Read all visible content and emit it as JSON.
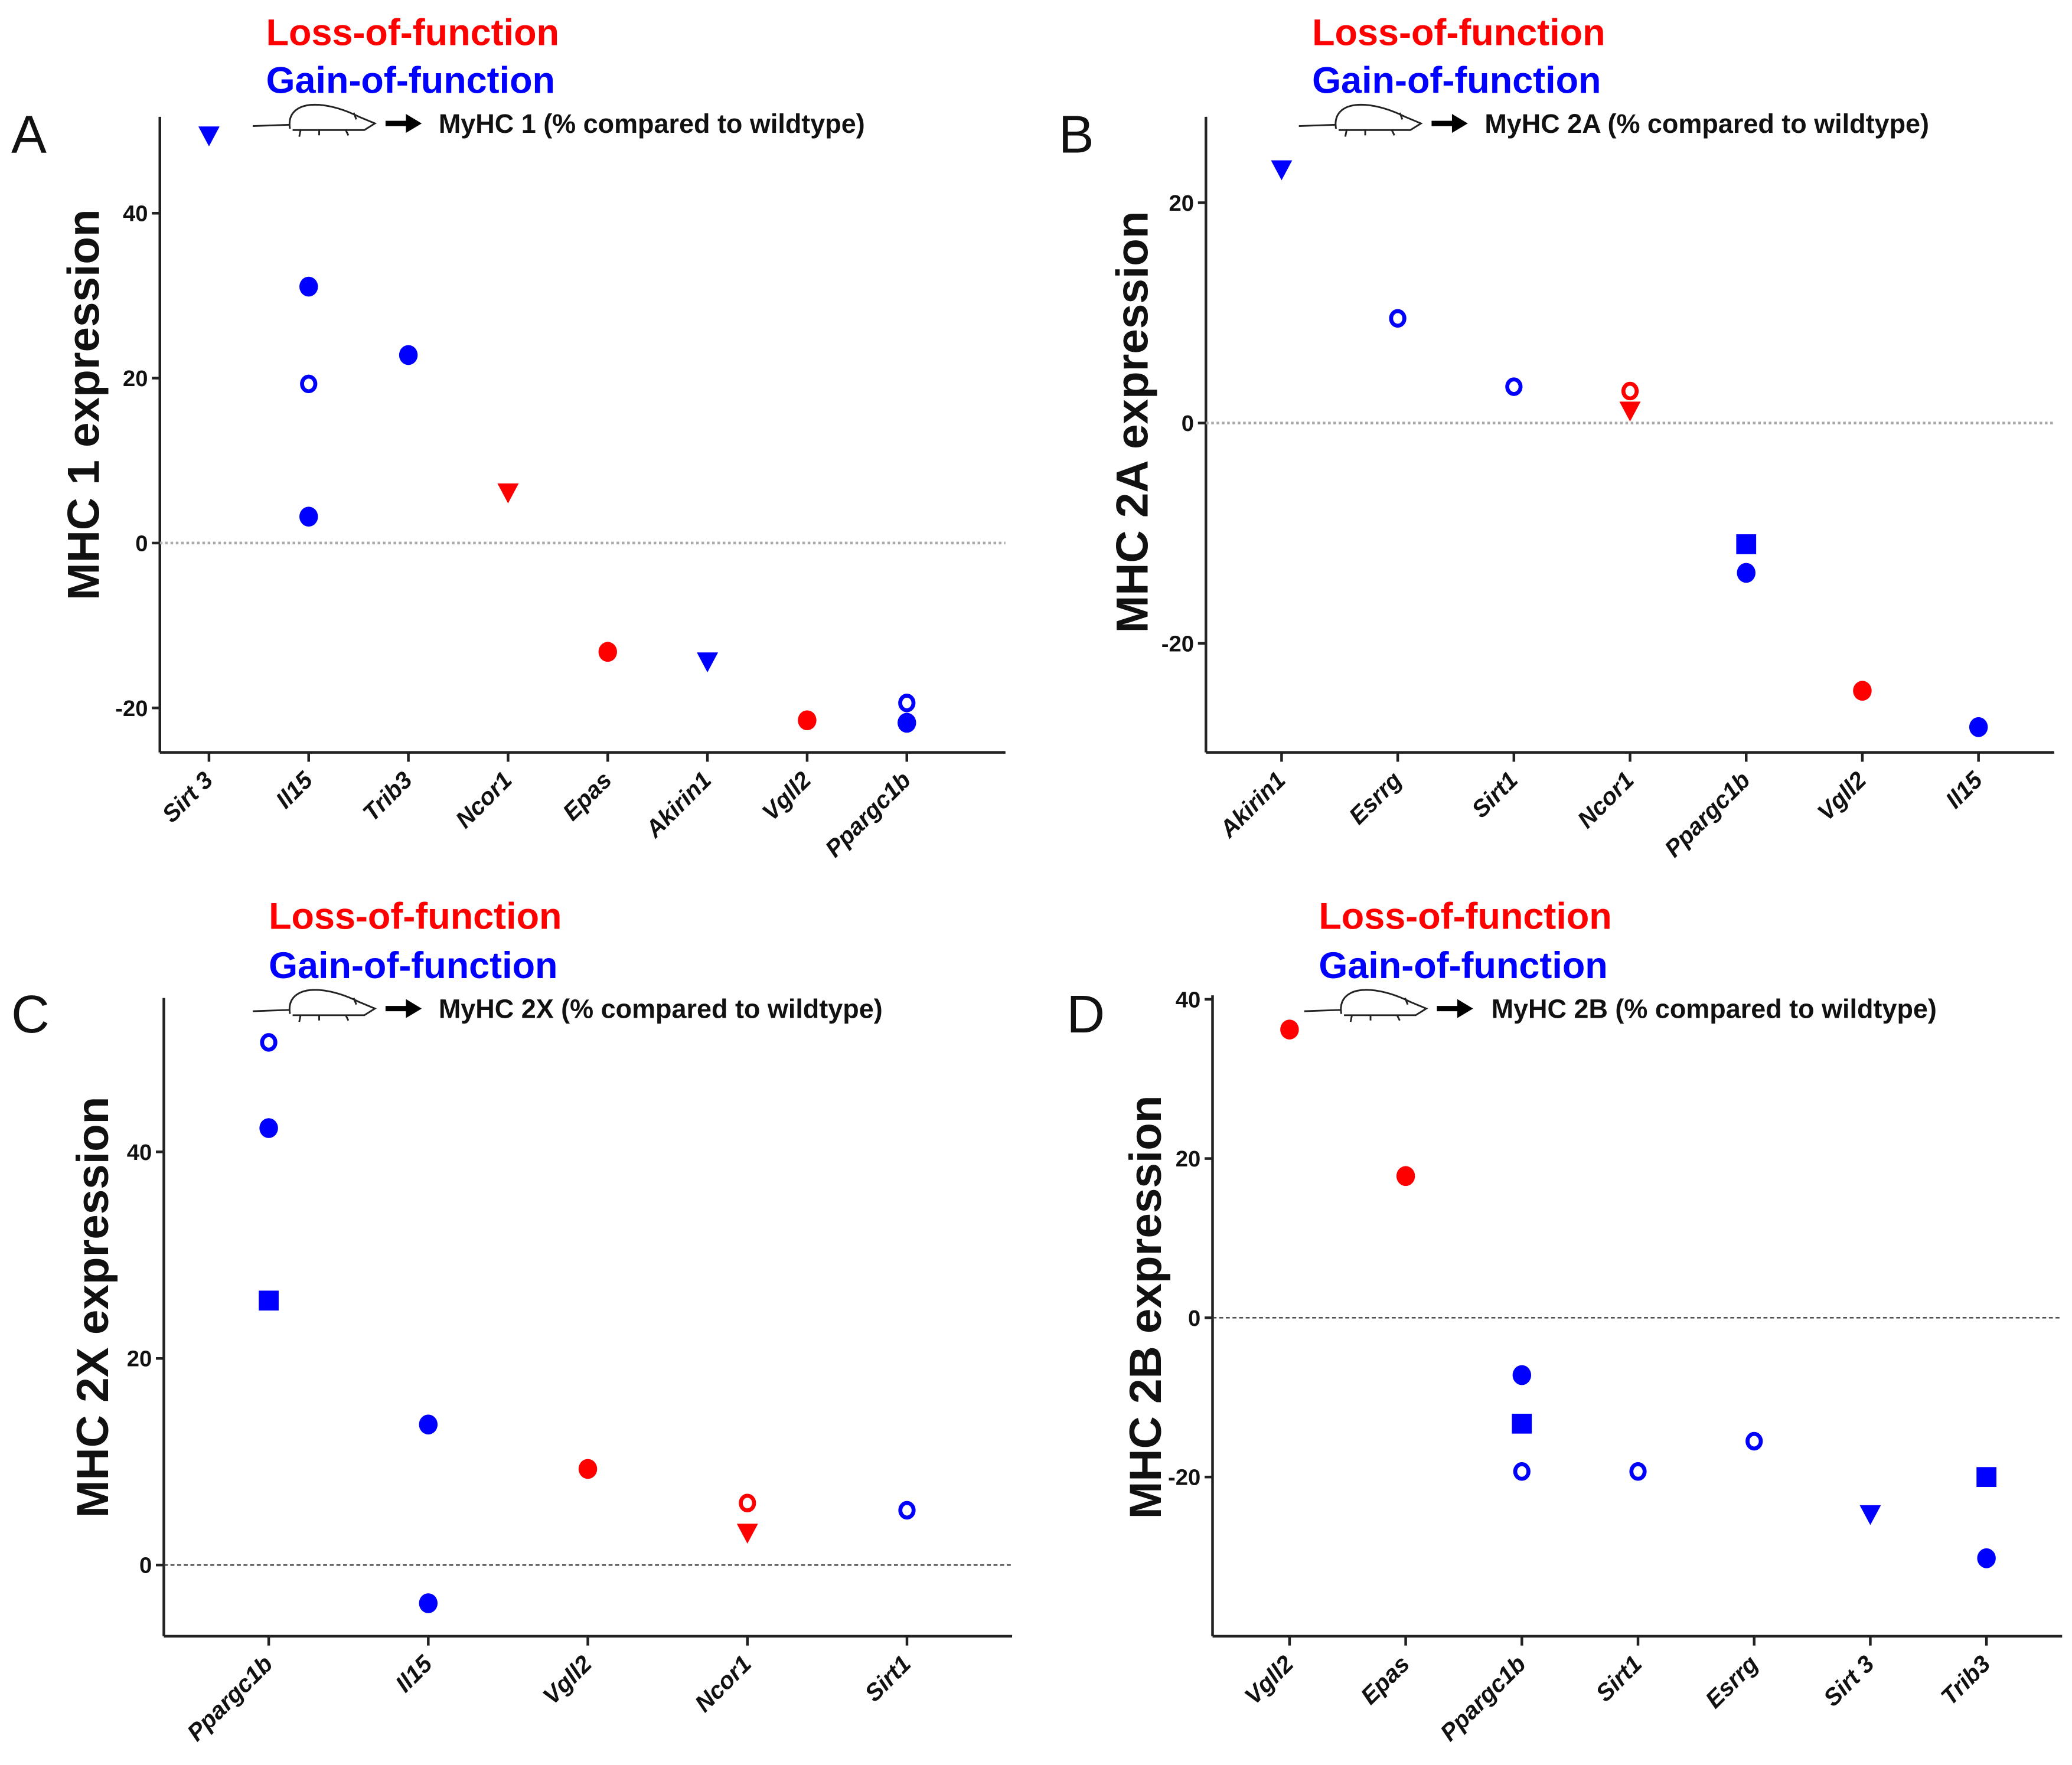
{
  "legend": {
    "loss": "Loss-of-function",
    "gain": "Gain-of-function",
    "loss_color": "#ff0000",
    "gain_color": "#0000ff",
    "icon": "mouse-icon"
  },
  "chart_data": [
    {
      "type": "scatter",
      "panel": "A",
      "title": "MyHC 1 (% compared to wildtype)",
      "ylabel": "MHC 1 expression",
      "ylim": [
        -25.4,
        51.7
      ],
      "yticks": [
        -20,
        0,
        20,
        40
      ],
      "zero_line": "dotted-gray",
      "categories": [
        "Sirt 3",
        "Il15",
        "Trib3",
        "Ncor1",
        "Epas",
        "Akirin1",
        "Vgll2",
        "Ppargc1b"
      ],
      "points": [
        {
          "category": "Sirt 3",
          "y": 49.4,
          "group": "gain",
          "marker": "triangle-down"
        },
        {
          "category": "Il15",
          "y": 31.1,
          "group": "gain",
          "marker": "circle"
        },
        {
          "category": "Il15",
          "y": 19.3,
          "group": "gain",
          "marker": "circle-open"
        },
        {
          "category": "Il15",
          "y": 3.2,
          "group": "gain",
          "marker": "circle"
        },
        {
          "category": "Trib3",
          "y": 22.8,
          "group": "gain",
          "marker": "circle"
        },
        {
          "category": "Ncor1",
          "y": 6.1,
          "group": "loss",
          "marker": "triangle-down"
        },
        {
          "category": "Epas",
          "y": -13.2,
          "group": "loss",
          "marker": "circle"
        },
        {
          "category": "Akirin1",
          "y": -14.4,
          "group": "gain",
          "marker": "triangle-down"
        },
        {
          "category": "Vgll2",
          "y": -21.5,
          "group": "loss",
          "marker": "circle"
        },
        {
          "category": "Ppargc1b",
          "y": -19.4,
          "group": "gain",
          "marker": "circle-open"
        },
        {
          "category": "Ppargc1b",
          "y": -21.8,
          "group": "gain",
          "marker": "circle"
        }
      ]
    },
    {
      "type": "scatter",
      "panel": "B",
      "title": "MyHC 2A (% compared to wildtype)",
      "ylabel": "MHC 2A expression",
      "ylim": [
        -29.9,
        27.8
      ],
      "yticks": [
        -20,
        0,
        20
      ],
      "zero_line": "dotted-gray",
      "categories": [
        "Akirin1",
        "Esrrg",
        "Sirt1",
        "Ncor1",
        "Ppargc1b",
        "Vgll2",
        "Il15"
      ],
      "points": [
        {
          "category": "Akirin1",
          "y": 23.0,
          "group": "gain",
          "marker": "triangle-down"
        },
        {
          "category": "Esrrg",
          "y": 9.5,
          "group": "gain",
          "marker": "circle-open"
        },
        {
          "category": "Sirt1",
          "y": 3.3,
          "group": "gain",
          "marker": "circle-open"
        },
        {
          "category": "Ncor1",
          "y": 2.9,
          "group": "loss",
          "marker": "circle-open"
        },
        {
          "category": "Ncor1",
          "y": 1.1,
          "group": "loss",
          "marker": "triangle-down"
        },
        {
          "category": "Ppargc1b",
          "y": -11.0,
          "group": "gain",
          "marker": "square"
        },
        {
          "category": "Ppargc1b",
          "y": -13.6,
          "group": "gain",
          "marker": "circle"
        },
        {
          "category": "Vgll2",
          "y": -24.3,
          "group": "loss",
          "marker": "circle"
        },
        {
          "category": "Il15",
          "y": -27.6,
          "group": "gain",
          "marker": "circle"
        }
      ]
    },
    {
      "type": "scatter",
      "panel": "C",
      "title": "MyHC 2X (% compared to wildtype)",
      "ylabel": "MHC 2X expression",
      "ylim": [
        -6.9,
        54.9
      ],
      "yticks": [
        0,
        20,
        40
      ],
      "zero_line": "dashed-black",
      "categories": [
        "Ppargc1b",
        "Il15",
        "Vgll2",
        "Ncor1",
        "Sirt1"
      ],
      "points": [
        {
          "category": "Ppargc1b",
          "y": 50.6,
          "group": "gain",
          "marker": "circle-open"
        },
        {
          "category": "Ppargc1b",
          "y": 42.3,
          "group": "gain",
          "marker": "circle"
        },
        {
          "category": "Ppargc1b",
          "y": 25.6,
          "group": "gain",
          "marker": "square"
        },
        {
          "category": "Il15",
          "y": 13.6,
          "group": "gain",
          "marker": "circle"
        },
        {
          "category": "Il15",
          "y": -3.7,
          "group": "gain",
          "marker": "circle"
        },
        {
          "category": "Vgll2",
          "y": 9.3,
          "group": "loss",
          "marker": "circle"
        },
        {
          "category": "Ncor1",
          "y": 6.0,
          "group": "loss",
          "marker": "circle-open"
        },
        {
          "category": "Ncor1",
          "y": 3.1,
          "group": "loss",
          "marker": "triangle-down"
        },
        {
          "category": "Sirt1",
          "y": 5.3,
          "group": "gain",
          "marker": "circle-open"
        }
      ]
    },
    {
      "type": "scatter",
      "panel": "D",
      "title": "MyHC 2B (% compared to wildtype)",
      "ylabel": "MHC 2B expression",
      "ylim": [
        -40,
        40.5
      ],
      "yticks": [
        -20,
        0,
        20,
        40
      ],
      "zero_line": "dashed-black",
      "categories": [
        "Vgll2",
        "Epas",
        "Ppargc1b",
        "Sirt1",
        "Esrrg",
        "Sirt 3",
        "Trib3"
      ],
      "points": [
        {
          "category": "Vgll2",
          "y": 36.2,
          "group": "loss",
          "marker": "circle"
        },
        {
          "category": "Epas",
          "y": 17.8,
          "group": "loss",
          "marker": "circle"
        },
        {
          "category": "Ppargc1b",
          "y": -7.2,
          "group": "gain",
          "marker": "circle"
        },
        {
          "category": "Ppargc1b",
          "y": -13.3,
          "group": "gain",
          "marker": "square"
        },
        {
          "category": "Ppargc1b",
          "y": -19.3,
          "group": "gain",
          "marker": "circle-open"
        },
        {
          "category": "Sirt1",
          "y": -19.3,
          "group": "gain",
          "marker": "circle-open"
        },
        {
          "category": "Esrrg",
          "y": -15.5,
          "group": "gain",
          "marker": "circle-open"
        },
        {
          "category": "Sirt 3",
          "y": -24.7,
          "group": "gain",
          "marker": "triangle-down"
        },
        {
          "category": "Trib3",
          "y": -20.0,
          "group": "gain",
          "marker": "square"
        },
        {
          "category": "Trib3",
          "y": -30.2,
          "group": "gain",
          "marker": "circle"
        }
      ]
    }
  ]
}
